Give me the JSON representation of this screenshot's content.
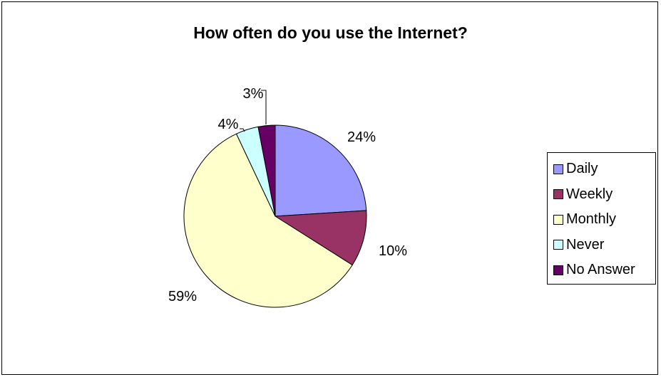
{
  "chart_data": {
    "type": "pie",
    "title": "How often do you use the Internet?",
    "categories": [
      "Daily",
      "Weekly",
      "Monthly",
      "Never",
      "No Answer"
    ],
    "values": [
      24,
      10,
      59,
      4,
      3
    ],
    "labels": [
      "24%",
      "10%",
      "59%",
      "4%",
      "3%"
    ],
    "colors": [
      "#9999ff",
      "#993366",
      "#ffffcc",
      "#ccffff",
      "#660066"
    ],
    "legend_placement": "right"
  }
}
